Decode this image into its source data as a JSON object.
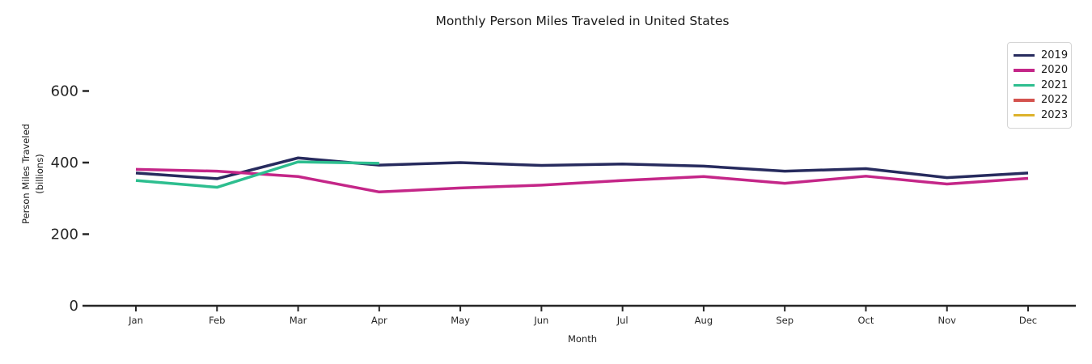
{
  "title": "Monthly Person Miles Traveled in United States",
  "axes": {
    "x_label": "Month",
    "y_label_line1": "Person Miles Traveled",
    "y_label_line2": "(billions)",
    "y_ticks": [
      0,
      200,
      400,
      600
    ],
    "x_tick_labels": [
      "Jan",
      "Feb",
      "Mar",
      "Apr",
      "May",
      "Jun",
      "Jul",
      "Aug",
      "Sep",
      "Oct",
      "Nov",
      "Dec"
    ]
  },
  "colors": {
    "text": "#1a1a1a",
    "axis": "#262626",
    "legend_border": "#d5d5d5"
  },
  "chart_data": {
    "type": "line",
    "title": "Monthly Person Miles Traveled in United States",
    "xlabel": "Month",
    "ylabel": "Person Miles Traveled (billions)",
    "categories": [
      "Jan",
      "Feb",
      "Mar",
      "Apr",
      "May",
      "Jun",
      "Jul",
      "Aug",
      "Sep",
      "Oct",
      "Nov",
      "Dec"
    ],
    "series": [
      {
        "name": "2019",
        "color": "#272b5e",
        "values": [
          371,
          355,
          413,
          393,
          400,
          392,
          396,
          390,
          376,
          383,
          358,
          371
        ]
      },
      {
        "name": "2020",
        "color": "#c42688",
        "values": [
          381,
          376,
          361,
          318,
          329,
          337,
          350,
          361,
          342,
          362,
          340,
          356
        ]
      },
      {
        "name": "2021",
        "color": "#2dbe8f",
        "values": [
          350,
          331,
          402,
          398
        ]
      },
      {
        "name": "2022",
        "color": "#d4534e",
        "values": []
      },
      {
        "name": "2023",
        "color": "#ddb22b",
        "values": []
      }
    ],
    "ylim": [
      0,
      660
    ],
    "grid": false,
    "legend_position": "upper right"
  }
}
